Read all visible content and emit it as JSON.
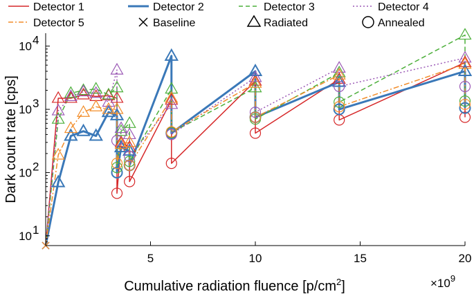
{
  "chart_data": {
    "type": "line",
    "xlabel": "Cumulative radiation fluence [p/cm",
    "xlabel_sup": "2",
    "xlabel_end": "]",
    "x_multiplier": "×10",
    "x_multiplier_exp": "9",
    "ylabel": "Dark count rate [cps]",
    "xlim": [
      0,
      20
    ],
    "ylim": [
      7,
      16000
    ],
    "y_scale": "log",
    "x_ticks": [
      5,
      10,
      15,
      20
    ],
    "x_tick_labels": [
      "5",
      "10",
      "15",
      "20"
    ],
    "y_ticks": [
      10,
      100,
      1000,
      10000
    ],
    "y_tick_labels": [
      "10",
      "10",
      "10",
      "10"
    ],
    "y_tick_exps": [
      "1",
      "2",
      "3",
      "4"
    ],
    "grid": false,
    "legend_position": "top",
    "legend": [
      {
        "label": "Detector 1",
        "color": "#d62728",
        "line": "solid"
      },
      {
        "label": "Detector 2",
        "color": "#3a78b8",
        "line": "solid-thick"
      },
      {
        "label": "Detector 3",
        "color": "#4caf3a",
        "line": "dashed"
      },
      {
        "label": "Detector 4",
        "color": "#9b59b6",
        "line": "dotted"
      },
      {
        "label": "Detector 5",
        "color": "#f28c28",
        "line": "dashdot"
      },
      {
        "label": "Baseline",
        "marker": "x"
      },
      {
        "label": "Radiated",
        "marker": "triangle"
      },
      {
        "label": "Annealed",
        "marker": "circle"
      }
    ],
    "series": [
      {
        "name": "Detector 1",
        "color": "#d62728",
        "dash": "",
        "width": 1.5,
        "points": [
          {
            "x": 0,
            "y": 7,
            "m": "x"
          },
          {
            "x": 0.6,
            "y": 1500,
            "m": "tri"
          },
          {
            "x": 1.2,
            "y": 1500,
            "m": "tri"
          },
          {
            "x": 1.8,
            "y": 1700,
            "m": "tri"
          },
          {
            "x": 2.4,
            "y": 1600,
            "m": "tri"
          },
          {
            "x": 3.0,
            "y": 1650,
            "m": "tri"
          },
          {
            "x": 3.4,
            "y": 1500,
            "m": "tri"
          },
          {
            "x": 3.4,
            "y": 47,
            "m": "circ"
          },
          {
            "x": 3.6,
            "y": 300,
            "m": "tri"
          },
          {
            "x": 4.0,
            "y": 250,
            "m": "tri"
          },
          {
            "x": 4.0,
            "y": 72,
            "m": "circ"
          },
          {
            "x": 6.0,
            "y": 1400,
            "m": "tri"
          },
          {
            "x": 6.0,
            "y": 140,
            "m": "circ"
          },
          {
            "x": 10.0,
            "y": 2800,
            "m": "tri"
          },
          {
            "x": 10.0,
            "y": 420,
            "m": "circ"
          },
          {
            "x": 14.0,
            "y": 3000,
            "m": "tri"
          },
          {
            "x": 14.0,
            "y": 680,
            "m": "circ"
          },
          {
            "x": 20.0,
            "y": 5500,
            "m": "tri"
          },
          {
            "x": 20.0,
            "y": 750,
            "m": "circ"
          }
        ]
      },
      {
        "name": "Detector 2",
        "color": "#3a78b8",
        "dash": "",
        "width": 3,
        "points": [
          {
            "x": 0,
            "y": 7,
            "m": "x"
          },
          {
            "x": 0.6,
            "y": 70,
            "m": "tri"
          },
          {
            "x": 1.2,
            "y": 380,
            "m": "tri"
          },
          {
            "x": 1.8,
            "y": 450,
            "m": "tri"
          },
          {
            "x": 2.4,
            "y": 380,
            "m": "tri"
          },
          {
            "x": 3.0,
            "y": 900,
            "m": "tri"
          },
          {
            "x": 3.4,
            "y": 800,
            "m": "tri"
          },
          {
            "x": 3.4,
            "y": 100,
            "m": "circ"
          },
          {
            "x": 3.6,
            "y": 250,
            "m": "tri"
          },
          {
            "x": 4.0,
            "y": 220,
            "m": "tri"
          },
          {
            "x": 4.0,
            "y": 130,
            "m": "circ"
          },
          {
            "x": 6.0,
            "y": 7000,
            "m": "tri"
          },
          {
            "x": 6.0,
            "y": 420,
            "m": "circ"
          },
          {
            "x": 10.0,
            "y": 4000,
            "m": "tri"
          },
          {
            "x": 10.0,
            "y": 750,
            "m": "circ"
          },
          {
            "x": 14.0,
            "y": 2700,
            "m": "tri"
          },
          {
            "x": 14.0,
            "y": 1000,
            "m": "circ"
          },
          {
            "x": 20.0,
            "y": 4000,
            "m": "tri"
          },
          {
            "x": 20.0,
            "y": 1050,
            "m": "circ"
          }
        ]
      },
      {
        "name": "Detector 3",
        "color": "#4caf3a",
        "dash": "7,4",
        "width": 1.5,
        "points": [
          {
            "x": 0,
            "y": 7,
            "m": "x"
          },
          {
            "x": 0.6,
            "y": 700,
            "m": "tri"
          },
          {
            "x": 1.2,
            "y": 1800,
            "m": "tri"
          },
          {
            "x": 1.8,
            "y": 2000,
            "m": "tri"
          },
          {
            "x": 2.4,
            "y": 2100,
            "m": "tri"
          },
          {
            "x": 3.0,
            "y": 1700,
            "m": "tri"
          },
          {
            "x": 3.4,
            "y": 2200,
            "m": "tri"
          },
          {
            "x": 3.4,
            "y": 120,
            "m": "circ"
          },
          {
            "x": 3.6,
            "y": 450,
            "m": "tri"
          },
          {
            "x": 4.0,
            "y": 600,
            "m": "tri"
          },
          {
            "x": 4.0,
            "y": 150,
            "m": "circ"
          },
          {
            "x": 6.0,
            "y": 2100,
            "m": "tri"
          },
          {
            "x": 6.0,
            "y": 430,
            "m": "circ"
          },
          {
            "x": 10.0,
            "y": 2200,
            "m": "tri"
          },
          {
            "x": 10.0,
            "y": 700,
            "m": "circ"
          },
          {
            "x": 14.0,
            "y": 3800,
            "m": "tri"
          },
          {
            "x": 14.0,
            "y": 1300,
            "m": "circ"
          },
          {
            "x": 20.0,
            "y": 15000,
            "m": "tri"
          },
          {
            "x": 20.0,
            "y": 1350,
            "m": "circ"
          }
        ]
      },
      {
        "name": "Detector 4",
        "color": "#9b59b6",
        "dash": "2,3",
        "width": 1.5,
        "points": [
          {
            "x": 0,
            "y": 7,
            "m": "x"
          },
          {
            "x": 0.6,
            "y": 950,
            "m": "tri"
          },
          {
            "x": 1.2,
            "y": 1600,
            "m": "tri"
          },
          {
            "x": 1.8,
            "y": 1900,
            "m": "tri"
          },
          {
            "x": 2.4,
            "y": 1800,
            "m": "tri"
          },
          {
            "x": 3.0,
            "y": 1300,
            "m": "tri"
          },
          {
            "x": 3.4,
            "y": 4200,
            "m": "tri"
          },
          {
            "x": 3.4,
            "y": 320,
            "m": "circ"
          },
          {
            "x": 3.6,
            "y": 500,
            "m": "tri"
          },
          {
            "x": 4.0,
            "y": 400,
            "m": "tri"
          },
          {
            "x": 4.0,
            "y": 180,
            "m": "circ"
          },
          {
            "x": 6.0,
            "y": 1200,
            "m": "tri"
          },
          {
            "x": 6.0,
            "y": 400,
            "m": "circ"
          },
          {
            "x": 10.0,
            "y": 3200,
            "m": "tri"
          },
          {
            "x": 10.0,
            "y": 900,
            "m": "circ"
          },
          {
            "x": 14.0,
            "y": 4500,
            "m": "tri"
          },
          {
            "x": 14.0,
            "y": 2300,
            "m": "circ"
          },
          {
            "x": 20.0,
            "y": 6500,
            "m": "tri"
          },
          {
            "x": 20.0,
            "y": 2300,
            "m": "circ"
          }
        ]
      },
      {
        "name": "Detector 5",
        "color": "#f28c28",
        "dash": "8,3,2,3",
        "width": 1.5,
        "points": [
          {
            "x": 0,
            "y": 7,
            "m": "x"
          },
          {
            "x": 0.6,
            "y": 190,
            "m": "tri"
          },
          {
            "x": 1.2,
            "y": 500,
            "m": "tri"
          },
          {
            "x": 1.8,
            "y": 900,
            "m": "tri"
          },
          {
            "x": 2.4,
            "y": 1100,
            "m": "tri"
          },
          {
            "x": 3.0,
            "y": 1000,
            "m": "tri"
          },
          {
            "x": 3.4,
            "y": 1000,
            "m": "tri"
          },
          {
            "x": 3.4,
            "y": 140,
            "m": "circ"
          },
          {
            "x": 3.6,
            "y": 280,
            "m": "tri"
          },
          {
            "x": 4.0,
            "y": 300,
            "m": "tri"
          },
          {
            "x": 4.0,
            "y": 130,
            "m": "circ"
          },
          {
            "x": 6.0,
            "y": 1500,
            "m": "tri"
          },
          {
            "x": 6.0,
            "y": 440,
            "m": "circ"
          },
          {
            "x": 10.0,
            "y": 2600,
            "m": "tri"
          },
          {
            "x": 10.0,
            "y": 750,
            "m": "circ"
          },
          {
            "x": 14.0,
            "y": 3500,
            "m": "tri"
          },
          {
            "x": 14.0,
            "y": 1100,
            "m": "circ"
          },
          {
            "x": 20.0,
            "y": 5200,
            "m": "tri"
          },
          {
            "x": 20.0,
            "y": 1200,
            "m": "circ"
          }
        ]
      }
    ]
  }
}
